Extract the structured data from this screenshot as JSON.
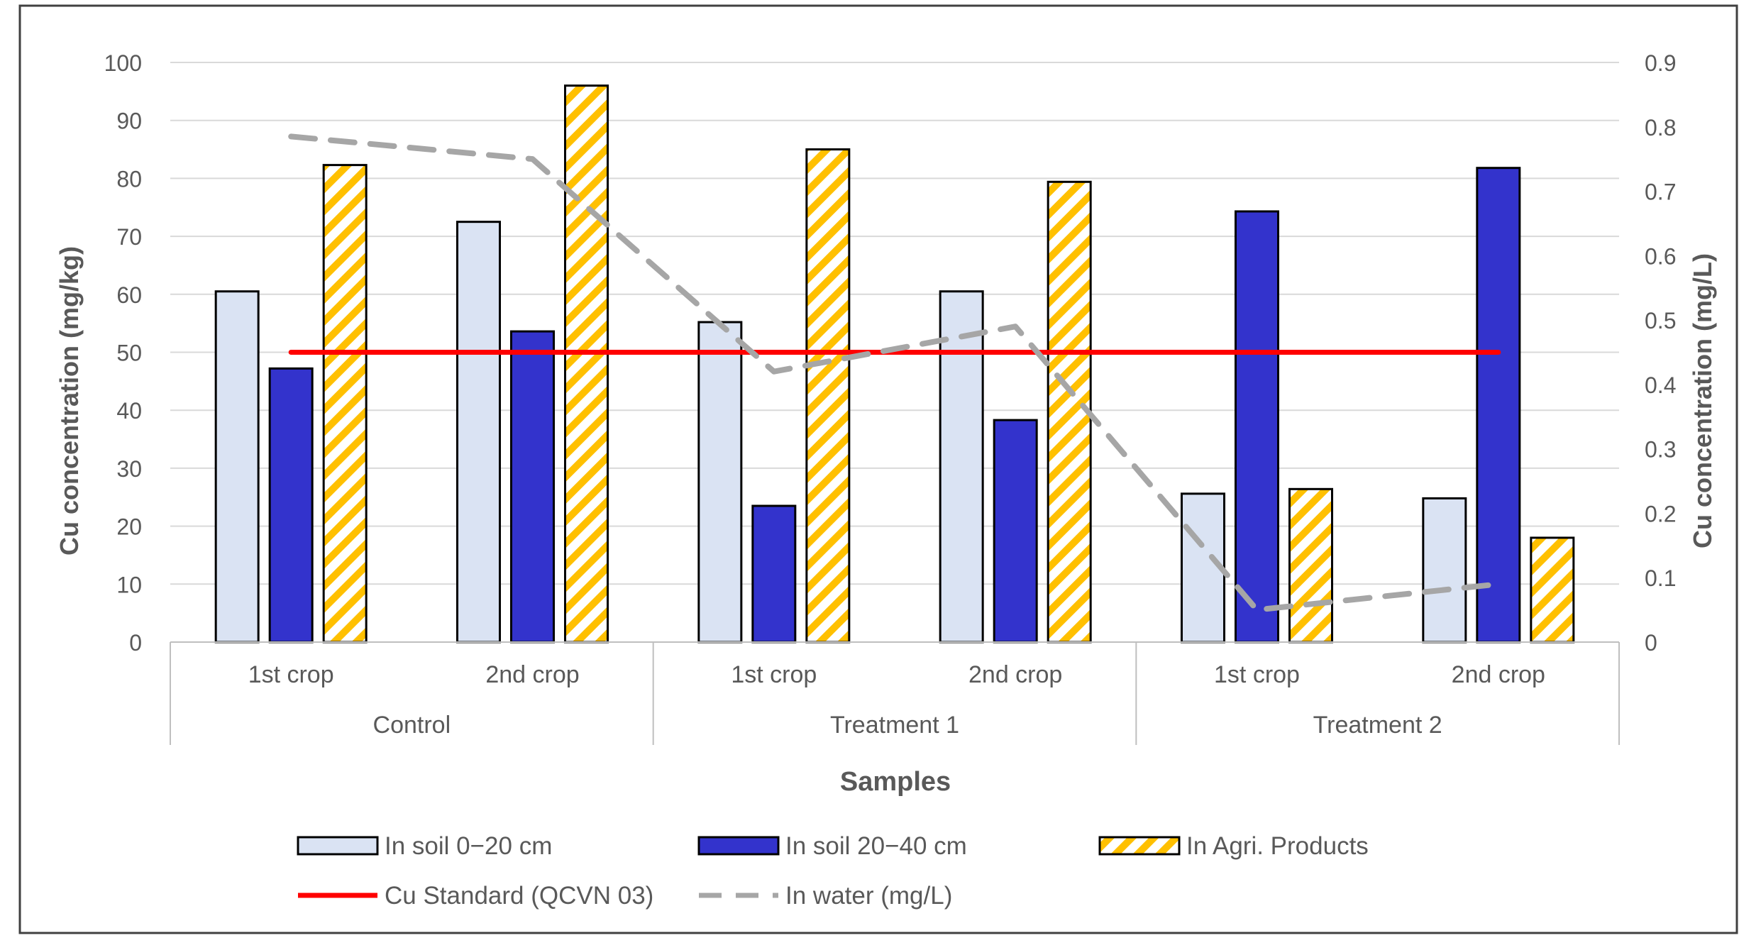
{
  "chart_data": {
    "type": "bar",
    "title": "",
    "xlabel": "Samples",
    "ylabel": "Cu concentration (mg/kg)",
    "y2label": "Cu concentration (mg/L)",
    "ylim": [
      0,
      100
    ],
    "y2lim": [
      0,
      0.9
    ],
    "yticks": [
      "0",
      "10",
      "20",
      "30",
      "40",
      "50",
      "60",
      "70",
      "80",
      "90",
      "100"
    ],
    "y2ticks": [
      "0",
      "0.1",
      "0.2",
      "0.3",
      "0.4",
      "0.5",
      "0.6",
      "0.7",
      "0.8",
      "0.9"
    ],
    "groups": [
      "Control",
      "Treatment 1",
      "Treatment 2"
    ],
    "categories": [
      "1st crop",
      "2nd crop",
      "1st crop",
      "2nd crop",
      "1st crop",
      "2nd crop"
    ],
    "series": [
      {
        "name": "In soil 0−20 cm",
        "kind": "bar",
        "color": "#dae3f3",
        "values": [
          60.5,
          72.5,
          55.2,
          60.5,
          25.6,
          24.8
        ]
      },
      {
        "name": "In soil 20−40 cm",
        "kind": "bar",
        "color": "#3333cc",
        "values": [
          47.2,
          53.6,
          23.5,
          38.3,
          74.3,
          81.8
        ]
      },
      {
        "name": "In Agri. Products",
        "kind": "bar-hatched",
        "color": "#ffc000",
        "values": [
          82.3,
          96.0,
          85.0,
          79.4,
          26.4,
          18.0
        ]
      },
      {
        "name": "Cu Standard (QCVN 03)",
        "kind": "line",
        "axis": "left",
        "color": "#ff0000",
        "values": [
          50,
          50,
          50,
          50,
          50,
          50
        ]
      },
      {
        "name": "In water (mg/L)",
        "kind": "line-dashed",
        "axis": "right",
        "color": "#a6a6a6",
        "values": [
          0.785,
          0.75,
          0.42,
          0.49,
          0.05,
          0.09
        ]
      }
    ],
    "legend": "bottom",
    "grid": true
  }
}
